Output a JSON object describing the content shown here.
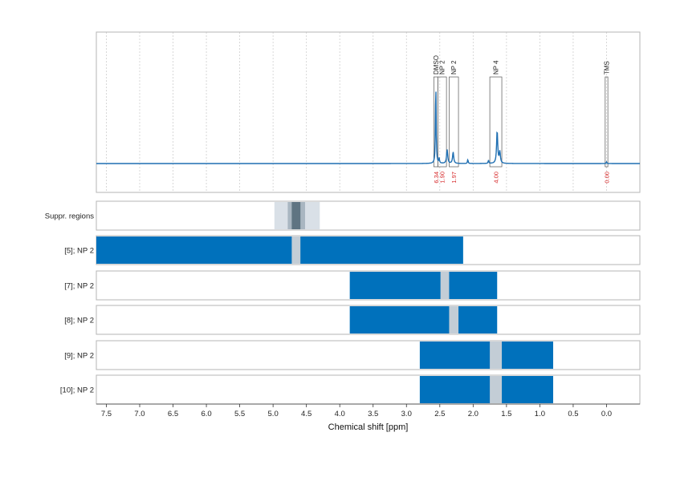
{
  "chart_data": {
    "type": "line",
    "xlabel": "Chemical shift [ppm]",
    "xlim": [
      7.65,
      -0.5
    ],
    "x_ticks": [
      "7.5",
      "7.0",
      "6.5",
      "6.0",
      "5.5",
      "5.0",
      "4.5",
      "4.0",
      "3.5",
      "3.0",
      "2.5",
      "2.0",
      "1.5",
      "1.0",
      "0.5",
      "0.0"
    ],
    "x_tick_values": [
      7.5,
      7.0,
      6.5,
      6.0,
      5.5,
      5.0,
      4.5,
      4.0,
      3.5,
      3.0,
      2.5,
      2.0,
      1.5,
      1.0,
      0.5,
      0.0
    ],
    "grid": true,
    "spectrum": {
      "color": "#1f6fb2",
      "peaks": [
        {
          "x": 2.56,
          "height": 1.0,
          "width": 0.006
        },
        {
          "x": 2.51,
          "height": 0.06,
          "width": 0.006
        },
        {
          "x": 2.39,
          "height": 0.17,
          "width": 0.01
        },
        {
          "x": 2.3,
          "height": 0.14,
          "width": 0.01
        },
        {
          "x": 2.08,
          "height": 0.05,
          "width": 0.006
        },
        {
          "x": 1.77,
          "height": 0.04,
          "width": 0.006
        },
        {
          "x": 1.64,
          "height": 0.4,
          "width": 0.01
        },
        {
          "x": 1.6,
          "height": 0.14,
          "width": 0.01
        },
        {
          "x": 0.0,
          "height": 0.02,
          "width": 0.006
        }
      ]
    },
    "peak_regions": [
      {
        "label": "DMSO",
        "from": 2.59,
        "to": 2.53,
        "integral": "6.34"
      },
      {
        "label": "NP 2",
        "from": 2.53,
        "to": 2.4,
        "integral": "1.90"
      },
      {
        "label": "NP 2",
        "from": 2.36,
        "to": 2.22,
        "integral": "1.97"
      },
      {
        "label": "NP 4",
        "from": 1.75,
        "to": 1.57,
        "integral": "4.00"
      },
      {
        "label": "TMS",
        "from": 0.02,
        "to": -0.02,
        "integral": "0.00"
      }
    ],
    "suppression_regions": {
      "label": "Suppr. regions",
      "bands": [
        {
          "from": 4.98,
          "to": 4.3,
          "shade": "light"
        },
        {
          "from": 4.78,
          "to": 4.52,
          "shade": "mid"
        },
        {
          "from": 4.72,
          "to": 4.59,
          "shade": "dark"
        }
      ]
    },
    "rows": [
      {
        "label": "[5]; NP 2",
        "from": 7.65,
        "to": 2.15,
        "gap_from": 4.72,
        "gap_to": 4.59
      },
      {
        "label": "[7]; NP 2",
        "from": 3.85,
        "to": 1.64,
        "gap_from": 2.49,
        "gap_to": 2.36
      },
      {
        "label": "[8]; NP 2",
        "from": 3.85,
        "to": 1.64,
        "gap_from": 2.36,
        "gap_to": 2.22
      },
      {
        "label": "[9]; NP 2",
        "from": 2.8,
        "to": 0.8,
        "gap_from": 1.75,
        "gap_to": 1.57
      },
      {
        "label": "[10]; NP 2",
        "from": 2.8,
        "to": 0.8,
        "gap_from": 1.75,
        "gap_to": 1.57
      }
    ],
    "colors": {
      "bar": "#0071bc",
      "gap": "#c3cdd6",
      "suppr_light": "#d9e0e7",
      "suppr_mid": "#a9b6c1",
      "suppr_dark": "#5f7482",
      "integral": "#d62728",
      "grid": "#cfcfcf",
      "frame": "#b5b5b5"
    }
  }
}
